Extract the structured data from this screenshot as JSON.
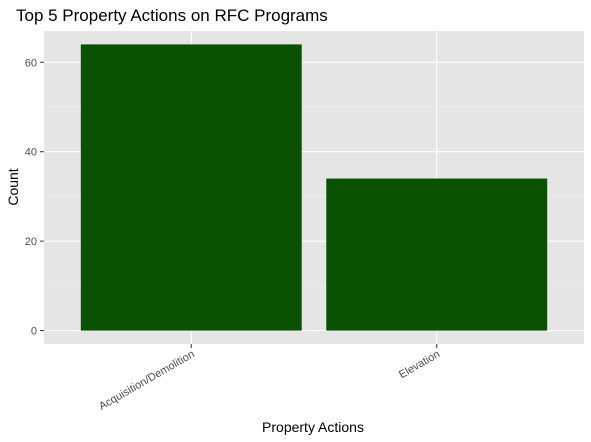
{
  "chart_data": {
    "type": "bar",
    "title": "Top 5 Property Actions on RFC Programs",
    "xlabel": "Property Actions",
    "ylabel": "Count",
    "categories": [
      "Acquisition/Demolition",
      "Elevation"
    ],
    "values": [
      64,
      34
    ],
    "ylim": [
      -3,
      67
    ],
    "yticks": [
      0,
      20,
      40,
      60
    ],
    "grid": true,
    "legend": "none",
    "colors": {
      "bar": "#0b5102",
      "panel": "#e5e5e5",
      "grid_major": "#ffffff",
      "grid_minor": "#f2f2f2",
      "tick_text": "#4d4d4d"
    }
  }
}
